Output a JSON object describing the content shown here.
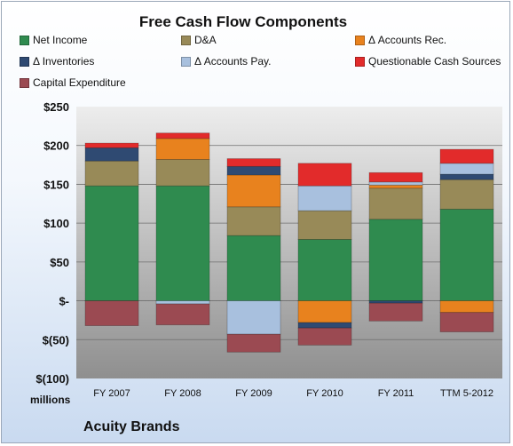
{
  "chart_data": {
    "type": "bar",
    "stacked": true,
    "title": "Free Cash Flow Components",
    "categories": [
      "FY 2007",
      "FY 2008",
      "FY 2009",
      "FY 2010",
      "FY 2011",
      "TTM 5-2012"
    ],
    "y_tick_labels": [
      "$250",
      "$200",
      "$150",
      "$100",
      "$50",
      "$-",
      "$(50)",
      "$(100)"
    ],
    "units_label": "millions",
    "company": "Acuity Brands",
    "ylim": [
      -100,
      250
    ],
    "y_tick_step": 50,
    "grid": true,
    "legend_position": "top",
    "series": [
      {
        "name": "Net Income",
        "color": "#2f8b4f",
        "values": [
          148,
          148,
          84,
          79,
          105,
          118
        ]
      },
      {
        "name": "D&A",
        "color": "#988a58",
        "values": [
          32,
          34,
          37,
          37,
          40,
          38
        ]
      },
      {
        "name": "Δ Accounts Rec.",
        "color": "#e8821e",
        "values": [
          0,
          27,
          41,
          -28,
          4,
          -15
        ]
      },
      {
        "name": "Δ Inventories",
        "color": "#2f4a72",
        "values": [
          17,
          0,
          11,
          -7,
          -3,
          7
        ]
      },
      {
        "name": "Δ Accounts Pay.",
        "color": "#a8c0de",
        "values": [
          0,
          -4,
          -43,
          32,
          4,
          14
        ]
      },
      {
        "name": "Questionable Cash Sources",
        "color": "#e22b2b",
        "values": [
          6,
          7,
          10,
          29,
          12,
          18
        ]
      },
      {
        "name": "Capital Expenditure",
        "color": "#9b4a52",
        "values": [
          -32,
          -27,
          -23,
          -22,
          -23,
          -25
        ]
      }
    ]
  }
}
